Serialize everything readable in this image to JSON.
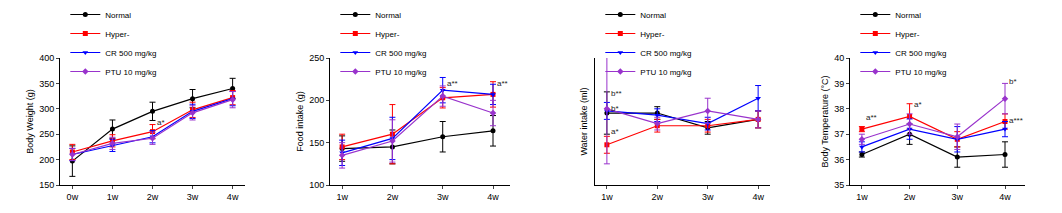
{
  "chart_data": [
    {
      "type": "line",
      "ylabel": "Body Weight (g)",
      "categories": [
        "0w",
        "1w",
        "2w",
        "3w",
        "4w"
      ],
      "ylim": [
        150,
        400
      ],
      "yticks": [
        150,
        200,
        250,
        300,
        350,
        400
      ],
      "grid": false,
      "series": [
        {
          "name": "Normal",
          "color": "#000000",
          "marker": "circle",
          "values": [
            197,
            260,
            295,
            320,
            340
          ],
          "errors": [
            30,
            18,
            18,
            18,
            20
          ]
        },
        {
          "name": "Hyper-",
          "color": "#ff0000",
          "marker": "square",
          "values": [
            215,
            237,
            255,
            298,
            322
          ],
          "errors": [
            15,
            12,
            14,
            15,
            14
          ]
        },
        {
          "name": "CR 500 mg/kg",
          "color": "#0000ff",
          "marker": "triangle-down",
          "values": [
            210,
            228,
            245,
            295,
            320
          ],
          "errors": [
            12,
            12,
            12,
            14,
            14
          ]
        },
        {
          "name": "PTU 10 mg/kg",
          "color": "#9933cc",
          "marker": "diamond",
          "values": [
            210,
            232,
            242,
            292,
            318
          ],
          "errors": [
            12,
            12,
            12,
            14,
            16
          ]
        }
      ],
      "annotations": [
        {
          "text": "a*",
          "x": "2w",
          "y": 260
        }
      ]
    },
    {
      "type": "line",
      "ylabel": "Food intake (g)",
      "categories": [
        "1w",
        "2w",
        "3w",
        "4w"
      ],
      "ylim": [
        100,
        250
      ],
      "yticks": [
        100,
        150,
        200,
        250
      ],
      "grid": false,
      "series": [
        {
          "name": "Normal",
          "color": "#000000",
          "marker": "circle",
          "values": [
            143,
            145,
            157,
            164
          ],
          "errors": [
            15,
            20,
            18,
            18
          ]
        },
        {
          "name": "Hyper-",
          "color": "#ff0000",
          "marker": "square",
          "values": [
            145,
            160,
            203,
            207
          ],
          "errors": [
            15,
            35,
            12,
            15
          ]
        },
        {
          "name": "CR 500 mg/kg",
          "color": "#0000ff",
          "marker": "triangle-down",
          "values": [
            138,
            155,
            212,
            207
          ],
          "errors": [
            15,
            25,
            15,
            12
          ]
        },
        {
          "name": "PTU 10 mg/kg",
          "color": "#9933cc",
          "marker": "diamond",
          "values": [
            135,
            152,
            205,
            185
          ],
          "errors": [
            15,
            25,
            12,
            15
          ]
        }
      ],
      "annotations": [
        {
          "text": "a**",
          "x": "3w",
          "y": 212
        },
        {
          "text": "a**",
          "x": "4w",
          "y": 212
        }
      ]
    },
    {
      "type": "line",
      "ylabel": "Water intake (ml)",
      "categories": [
        "1w",
        "2w",
        "3w",
        "4w"
      ],
      "ylim": [
        100,
        400
      ],
      "tick_labels": "x",
      "grid": false,
      "series": [
        {
          "name": "Normal",
          "color": "#000000",
          "marker": "circle",
          "values": [
            270,
            270,
            235,
            255
          ],
          "errors": [
            50,
            15,
            15,
            20
          ]
        },
        {
          "name": "Hyper-",
          "color": "#ff0000",
          "marker": "square",
          "values": [
            195,
            240,
            240,
            255
          ],
          "errors": [
            20,
            15,
            15,
            20
          ]
        },
        {
          "name": "CR 500 mg/kg",
          "color": "#0000ff",
          "marker": "triangle-down",
          "values": [
            275,
            265,
            245,
            305
          ],
          "errors": [
            20,
            15,
            15,
            30
          ]
        },
        {
          "name": "PTU 10 mg/kg",
          "color": "#9933cc",
          "marker": "diamond",
          "values": [
            280,
            245,
            275,
            255
          ],
          "errors": [
            130,
            15,
            30,
            20
          ]
        }
      ],
      "annotations": [
        {
          "text": "b**",
          "x": "1w",
          "y": 300
        },
        {
          "text": "b*",
          "x": "1w",
          "y": 265
        },
        {
          "text": "a*",
          "x": "1w",
          "y": 210
        }
      ]
    },
    {
      "type": "line",
      "ylabel": "Body Temperature (°C)",
      "categories": [
        "1w",
        "2w",
        "3w",
        "4w"
      ],
      "ylim": [
        35,
        40
      ],
      "yticks": [
        35,
        36,
        37,
        38,
        39,
        40
      ],
      "grid": false,
      "series": [
        {
          "name": "Normal",
          "color": "#000000",
          "marker": "circle",
          "values": [
            36.2,
            37.0,
            36.1,
            36.2
          ],
          "errors": [
            0.1,
            0.4,
            0.4,
            0.5
          ]
        },
        {
          "name": "Hyper-",
          "color": "#ff0000",
          "marker": "square",
          "values": [
            37.2,
            37.7,
            36.8,
            37.5
          ],
          "errors": [
            0.1,
            0.5,
            0.3,
            0.3
          ]
        },
        {
          "name": "CR 500 mg/kg",
          "color": "#0000ff",
          "marker": "triangle-down",
          "values": [
            36.5,
            37.2,
            36.8,
            37.2
          ],
          "errors": [
            0.2,
            0.4,
            0.5,
            0.3
          ]
        },
        {
          "name": "PTU 10 mg/kg",
          "color": "#9933cc",
          "marker": "diamond",
          "values": [
            36.8,
            37.4,
            36.9,
            38.4
          ],
          "errors": [
            0.2,
            0.4,
            0.5,
            0.6
          ]
        }
      ],
      "annotations": [
        {
          "text": "a**",
          "x": "1w",
          "y": 37.4
        },
        {
          "text": "a*",
          "x": "2w",
          "y": 37.9
        },
        {
          "text": "b*",
          "x": "4w",
          "y": 38.8
        },
        {
          "text": "a***",
          "x": "4w",
          "y": 37.3
        }
      ]
    }
  ]
}
